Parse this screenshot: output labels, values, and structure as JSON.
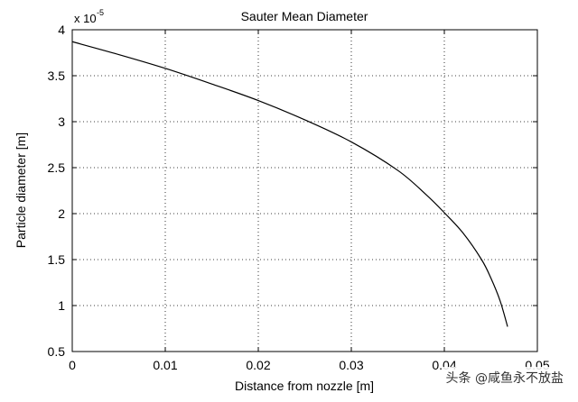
{
  "chart_data": {
    "type": "line",
    "title": "Sauter Mean Diameter",
    "xlabel": "Distance from nozzle [m]",
    "ylabel": "Particle diameter [m]",
    "y_multiplier_label": "x 10",
    "y_multiplier_exponent": "-5",
    "xlim": [
      0,
      0.05
    ],
    "ylim": [
      0.5,
      4
    ],
    "xticks": [
      0,
      0.01,
      0.02,
      0.03,
      0.04,
      0.05
    ],
    "xtick_labels": [
      "0",
      "0.01",
      "0.02",
      "0.03",
      "0.04",
      "0.05"
    ],
    "yticks": [
      0.5,
      1,
      1.5,
      2,
      2.5,
      3,
      3.5,
      4
    ],
    "ytick_labels": [
      "0.5",
      "1",
      "1.5",
      "2",
      "2.5",
      "3",
      "3.5",
      "4"
    ],
    "grid": true,
    "series": [
      {
        "name": "Sauter Mean Diameter",
        "x": [
          0,
          0.005,
          0.01,
          0.015,
          0.02,
          0.025,
          0.03,
          0.035,
          0.038,
          0.04,
          0.042,
          0.044,
          0.045,
          0.046,
          0.0468
        ],
        "y": [
          3.87,
          3.73,
          3.58,
          3.41,
          3.23,
          3.02,
          2.78,
          2.47,
          2.21,
          2.01,
          1.79,
          1.5,
          1.3,
          1.05,
          0.77
        ]
      }
    ]
  },
  "watermark": "头条 @咸鱼永不放盐"
}
